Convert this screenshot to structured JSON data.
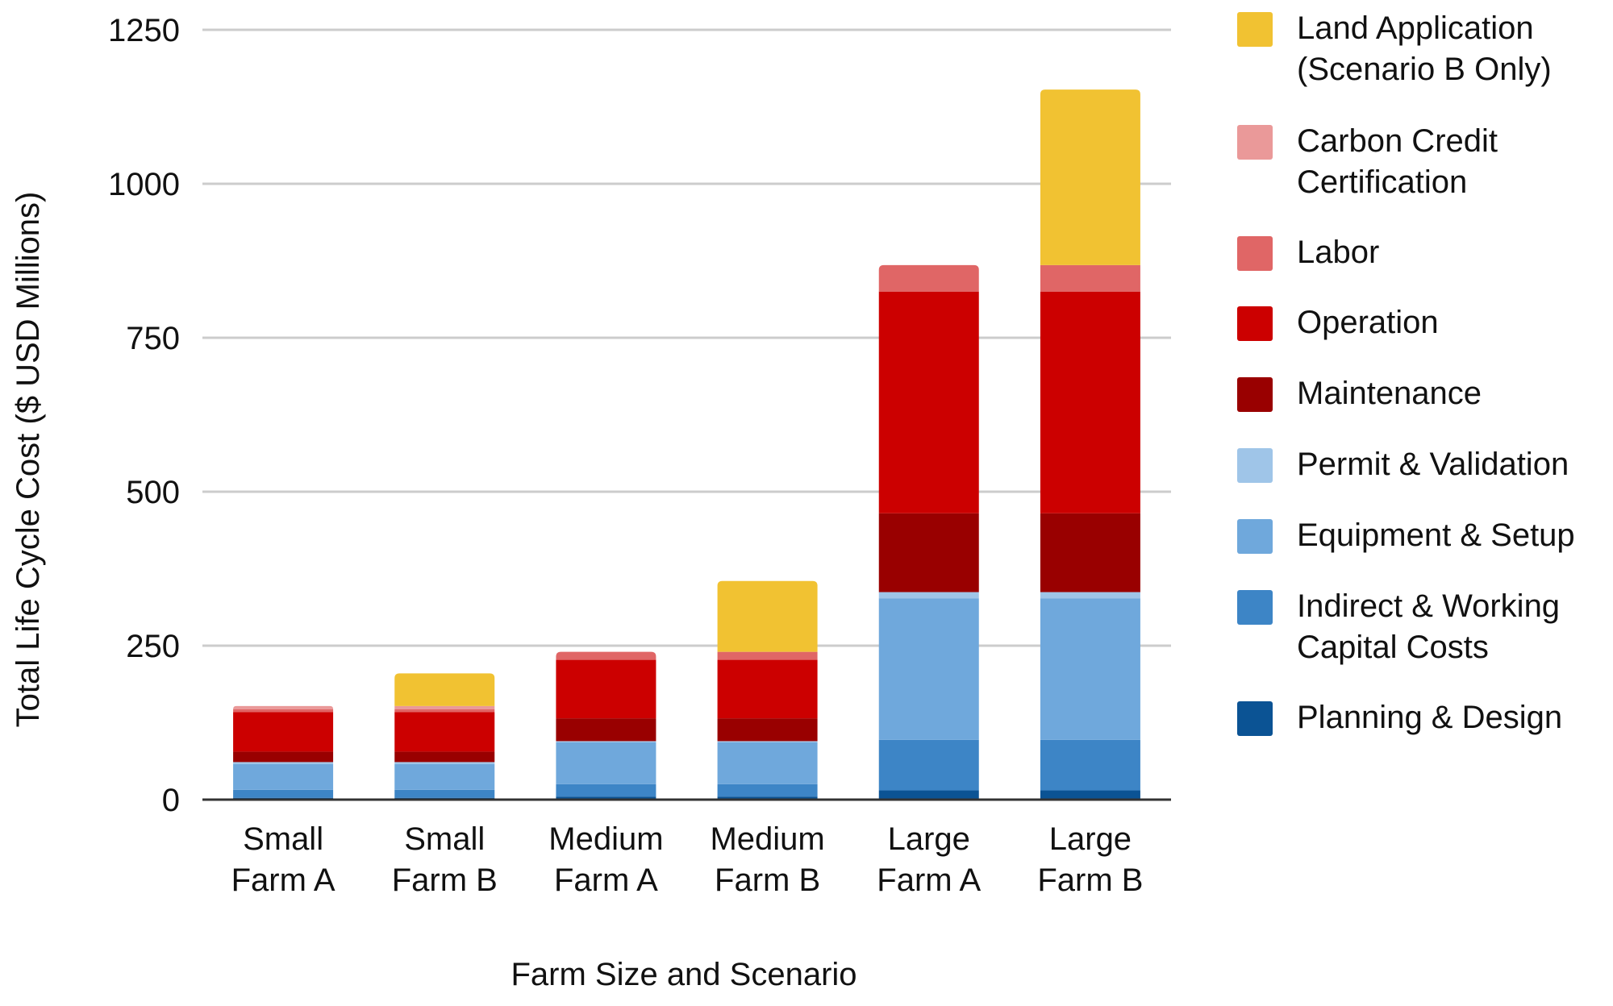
{
  "chart_data": {
    "type": "bar",
    "stacked": true,
    "title": "",
    "xlabel": "Farm Size and Scenario",
    "ylabel": "Total Life Cycle Cost ($ USD Millions)",
    "ylim": [
      0,
      1250
    ],
    "yticks": [
      0,
      250,
      500,
      750,
      1000,
      1250
    ],
    "grid": true,
    "legend_position": "right",
    "categories": [
      [
        "Small",
        "Farm A"
      ],
      [
        "Small",
        "Farm B"
      ],
      [
        "Medium",
        "Farm A"
      ],
      [
        "Medium",
        "Farm B"
      ],
      [
        "Large",
        "Farm A"
      ],
      [
        "Large",
        "Farm B"
      ]
    ],
    "series": [
      {
        "name": "Planning & Design",
        "color": "#0b5394",
        "values": [
          3,
          3,
          5,
          5,
          15,
          15
        ]
      },
      {
        "name": "Indirect & Working Capital Costs",
        "color": "#3d85c6",
        "values": [
          13,
          13,
          20,
          20,
          82,
          82
        ]
      },
      {
        "name": "Equipment & Setup",
        "color": "#6fa8dc",
        "values": [
          42,
          42,
          68,
          68,
          230,
          230
        ]
      },
      {
        "name": "Permit & Validation",
        "color": "#9fc5e8",
        "values": [
          3,
          3,
          2,
          2,
          10,
          10
        ]
      },
      {
        "name": "Maintenance",
        "color": "#990000",
        "values": [
          17,
          17,
          37,
          37,
          128,
          128
        ]
      },
      {
        "name": "Operation",
        "color": "#cc0000",
        "values": [
          64,
          64,
          95,
          95,
          360,
          360
        ]
      },
      {
        "name": "Labor",
        "color": "#e06666",
        "values": [
          5,
          5,
          13,
          13,
          43,
          43
        ]
      },
      {
        "name": "Carbon Credit Certification",
        "color": "#ea9999",
        "values": [
          5,
          5,
          0,
          0,
          0,
          0
        ]
      },
      {
        "name": "Land Application (Scenario B Only)",
        "color": "#f1c232",
        "values": [
          0,
          53,
          0,
          115,
          0,
          285
        ]
      }
    ]
  },
  "legend": [
    {
      "label": "Land Application\n(Scenario B Only)",
      "color": "#f1c232"
    },
    {
      "label": "Carbon Credit\nCertification",
      "color": "#ea9999"
    },
    {
      "label": "Labor",
      "color": "#e06666"
    },
    {
      "label": "Operation",
      "color": "#cc0000"
    },
    {
      "label": "Maintenance",
      "color": "#990000"
    },
    {
      "label": "Permit & Validation",
      "color": "#9fc5e8"
    },
    {
      "label": "Equipment & Setup",
      "color": "#6fa8dc"
    },
    {
      "label": "Indirect & Working\nCapital Costs",
      "color": "#3d85c6"
    },
    {
      "label": "Planning & Design",
      "color": "#0b5394"
    }
  ]
}
